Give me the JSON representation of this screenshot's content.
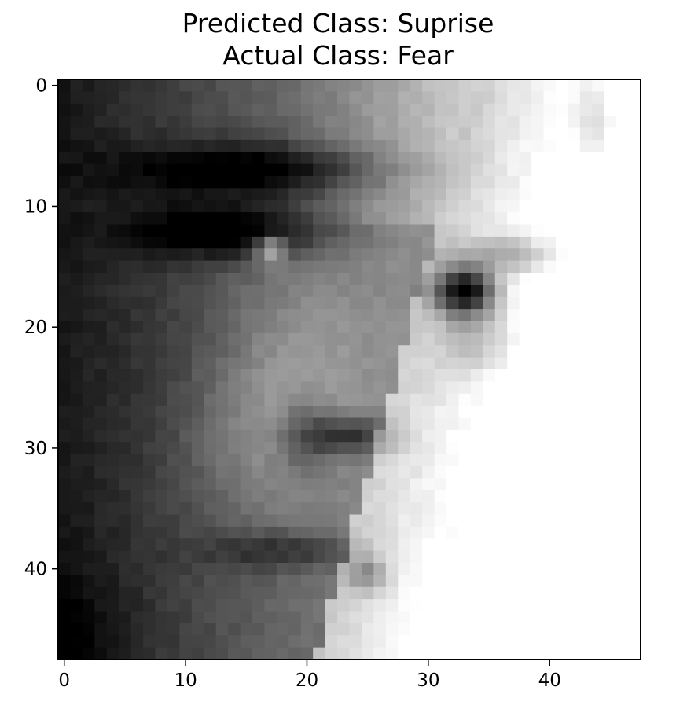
{
  "chart_data": {
    "type": "heatmap",
    "title": "Predicted Class: Suprise",
    "subtitle": "Actual Class: Fear",
    "colormap": "gray",
    "rows": 48,
    "cols": 48,
    "xlim": [
      -0.5,
      47.5
    ],
    "ylim": [
      47.5,
      -0.5
    ],
    "x_ticks": [
      0,
      10,
      20,
      30,
      40
    ],
    "y_ticks": [
      0,
      10,
      20,
      30,
      40
    ],
    "grid": false,
    "legend": "none",
    "colors": {
      "frame": "#000000",
      "background": "#ffffff"
    },
    "image_content": "grayscale 48x48 pixel face crop: dark left side with eyebrow, eye and nose; bright right side with second eye"
  }
}
